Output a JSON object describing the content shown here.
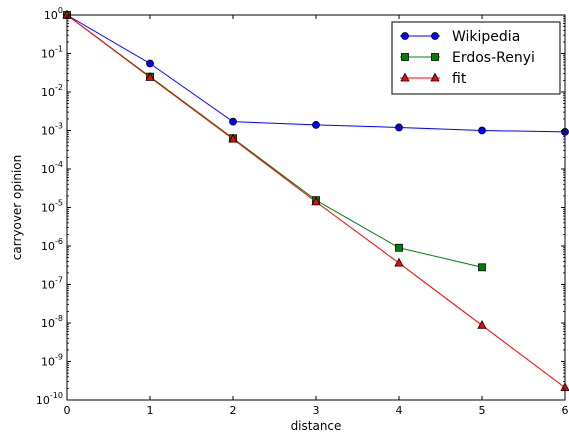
{
  "chart_data": {
    "type": "line",
    "xlabel": "distance",
    "ylabel": "carryover opinion",
    "xlim": [
      0,
      6
    ],
    "ylim_exponent": [
      -10,
      0
    ],
    "y_scale": "log",
    "grid": false,
    "legend_position": "top-right",
    "x_ticks": [
      "0",
      "1",
      "2",
      "3",
      "4",
      "5",
      "6"
    ],
    "y_ticks": [
      {
        "base": "10",
        "exp": "0"
      },
      {
        "base": "10",
        "exp": "-1"
      },
      {
        "base": "10",
        "exp": "-2"
      },
      {
        "base": "10",
        "exp": "-3"
      },
      {
        "base": "10",
        "exp": "-4"
      },
      {
        "base": "10",
        "exp": "-5"
      },
      {
        "base": "10",
        "exp": "-6"
      },
      {
        "base": "10",
        "exp": "-7"
      },
      {
        "base": "10",
        "exp": "-8"
      },
      {
        "base": "10",
        "exp": "-9"
      },
      {
        "base": "10",
        "exp": "-10"
      }
    ],
    "series": [
      {
        "name": "Wikipedia",
        "color": "#0000ff",
        "marker": "circle",
        "x": [
          0,
          1,
          2,
          3,
          4,
          5,
          6
        ],
        "y": [
          1,
          0.055,
          0.0017,
          0.0014,
          0.0012,
          0.001,
          0.00092
        ]
      },
      {
        "name": "Erdos-Renyi",
        "color": "#008000",
        "marker": "square",
        "x": [
          0,
          1,
          2,
          3,
          4,
          5
        ],
        "y": [
          1,
          0.025,
          0.00063,
          1.55e-05,
          9e-07,
          2.8e-07
        ]
      },
      {
        "name": "fit",
        "color": "#ff0000",
        "marker": "triangle",
        "x": [
          0,
          1,
          2,
          3,
          4,
          5,
          6
        ],
        "y": [
          1,
          0.024,
          0.0006,
          1.4e-05,
          3.6e-07,
          8.7e-09,
          2.1e-10
        ]
      }
    ]
  }
}
